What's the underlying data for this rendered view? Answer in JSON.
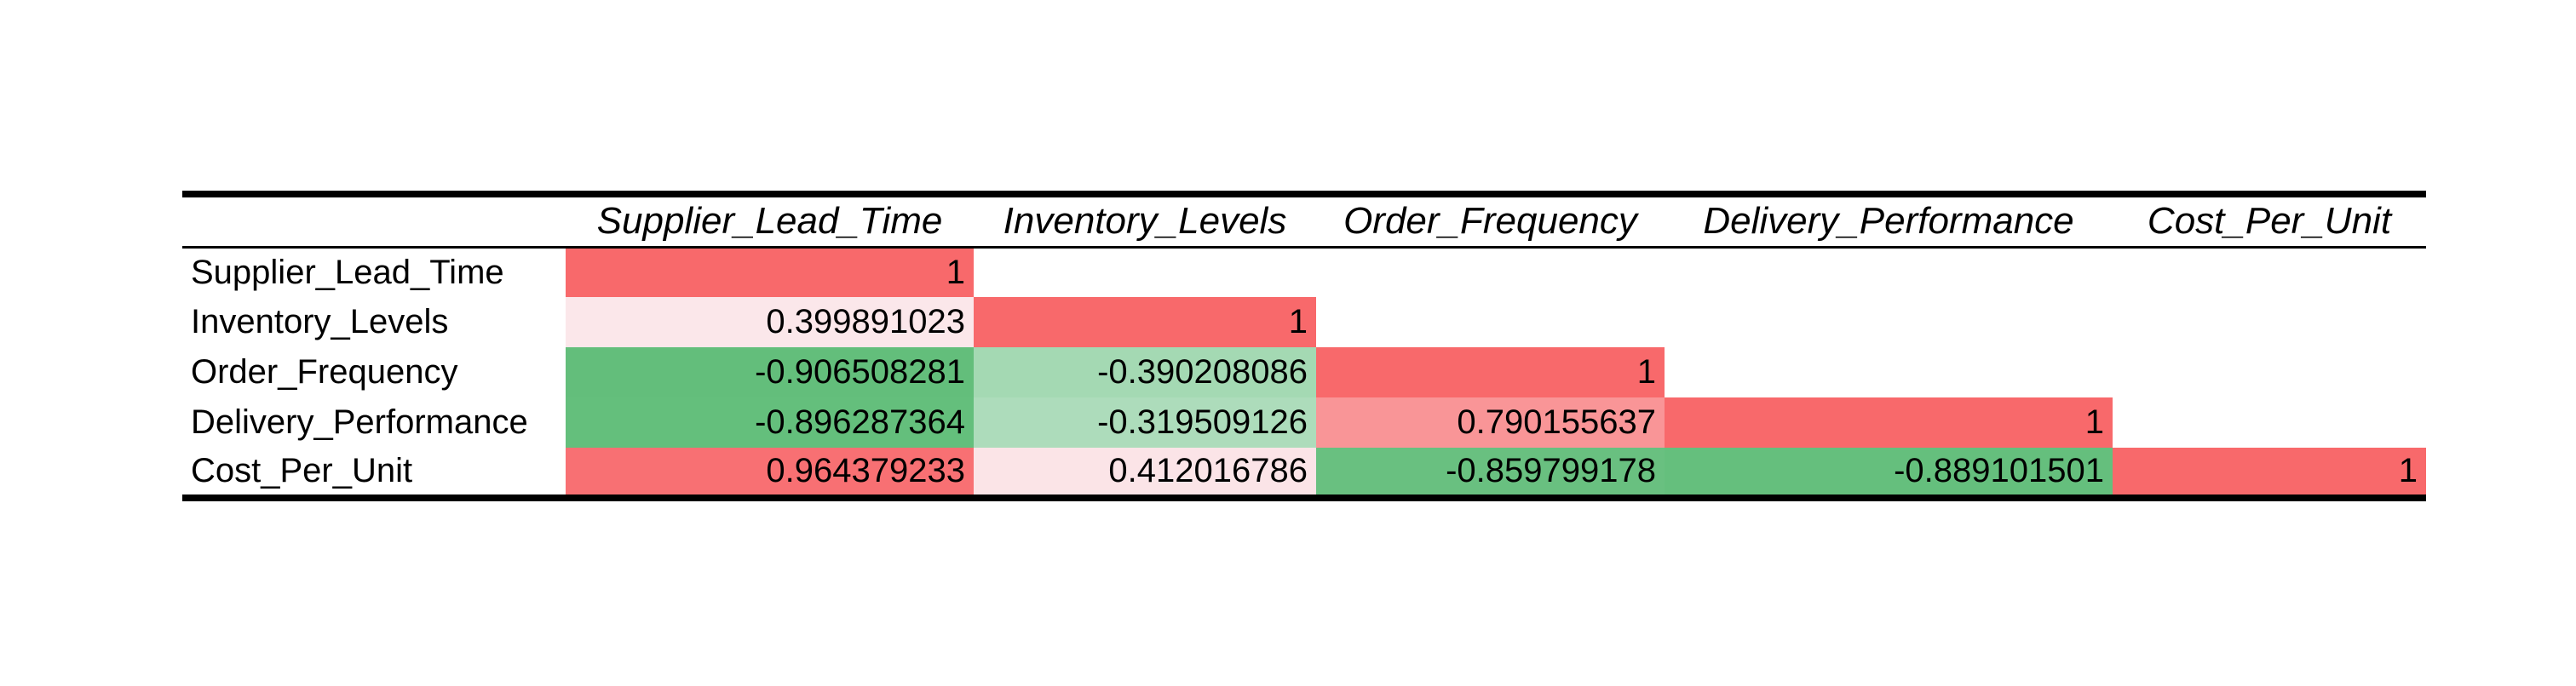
{
  "chart_data": {
    "type": "heatmap",
    "title": "",
    "description_kind": "correlation matrix (lower triangle)",
    "variables": [
      "Supplier_Lead_Time",
      "Inventory_Levels",
      "Order_Frequency",
      "Delivery_Performance",
      "Cost_Per_Unit"
    ],
    "matrix": [
      [
        "1",
        null,
        null,
        null,
        null
      ],
      [
        "0.399891023",
        "1",
        null,
        null,
        null
      ],
      [
        "-0.906508281",
        "-0.390208086",
        "1",
        null,
        null
      ],
      [
        "-0.896287364",
        "-0.319509126",
        "0.790155637",
        "1",
        null
      ],
      [
        "0.964379233",
        "0.412016786",
        "-0.859799178",
        "-0.889101501",
        "1"
      ]
    ],
    "color_scale": {
      "min_value": -0.906508281,
      "mid_value": 0.3,
      "max_value": 1,
      "min_color": "#63be7b",
      "mid_color": "#fcfcff",
      "max_color": "#f8696b"
    }
  }
}
